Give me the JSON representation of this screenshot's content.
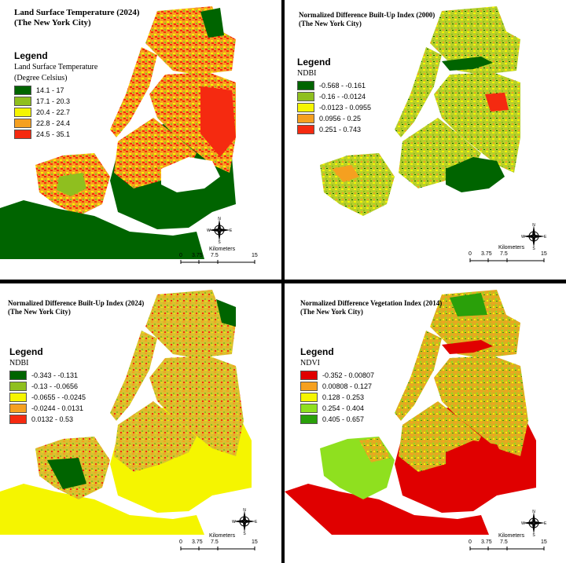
{
  "panels": [
    {
      "title1": "Land Surface Temperature (2024)",
      "title2": "(The New York City)",
      "legend_heading": "Legend",
      "legend_sub1": "Land Surface Temperature",
      "legend_sub2": "(Degree Celsius)",
      "classes": [
        {
          "label": "14.1 - 17",
          "color": "#006400"
        },
        {
          "label": "17.1 - 20.3",
          "color": "#8fbf1f"
        },
        {
          "label": "20.4 - 22.7",
          "color": "#f5f500"
        },
        {
          "label": "22.8 - 24.4",
          "color": "#f5a020"
        },
        {
          "label": "24.5 - 35.1",
          "color": "#f52a10"
        }
      ],
      "water_color": "#ffffff",
      "compass": {
        "n": "N",
        "s": "S",
        "e": "E",
        "w": "W"
      },
      "scale": {
        "title": "Kilometers",
        "ticks": [
          "0",
          "3.75",
          "7.5",
          "15"
        ]
      }
    },
    {
      "title1": "Normalized Difference Built-Up Index (2000)",
      "title2": "(The New York City)",
      "legend_heading": "Legend",
      "legend_sub1": "NDBI",
      "legend_sub2": "",
      "classes": [
        {
          "label": "-0.568 - -0.161",
          "color": "#006400"
        },
        {
          "label": "-0.16 - -0.0124",
          "color": "#8fbf1f"
        },
        {
          "label": "-0.0123 - 0.0955",
          "color": "#f5f500"
        },
        {
          "label": "0.0956 - 0.25",
          "color": "#f5a020"
        },
        {
          "label": "0.251 - 0.743",
          "color": "#f52a10"
        }
      ],
      "water_color": "#ffffff",
      "compass": {
        "n": "N",
        "s": "S",
        "e": "E",
        "w": "W"
      },
      "scale": {
        "title": "Kilometers",
        "ticks": [
          "0",
          "3.75",
          "7.5",
          "15"
        ]
      }
    },
    {
      "title1": "Normalized Difference Built-Up Index (2024)",
      "title2": "(The New York City)",
      "legend_heading": "Legend",
      "legend_sub1": "NDBI",
      "legend_sub2": "",
      "classes": [
        {
          "label": "-0.343 - -0.131",
          "color": "#006400"
        },
        {
          "label": "-0.13 - -0.0656",
          "color": "#8fbf1f"
        },
        {
          "label": "-0.0655 - -0.0245",
          "color": "#f5f500"
        },
        {
          "label": "-0.0244 - 0.0131",
          "color": "#f5a020"
        },
        {
          "label": "0.0132 - 0.53",
          "color": "#f52a10"
        }
      ],
      "water_color": "#f5f500",
      "compass": {
        "n": "N",
        "s": "S",
        "e": "E",
        "w": "W"
      },
      "scale": {
        "title": "Kilometers",
        "ticks": [
          "0",
          "3.75",
          "7.5",
          "15"
        ]
      }
    },
    {
      "title1": "Normalized Difference Vegetation Index (2014)",
      "title2": "(The New York City)",
      "legend_heading": "Legend",
      "legend_sub1": "NDVI",
      "legend_sub2": "",
      "classes": [
        {
          "label": "-0.352 - 0.00807",
          "color": "#e00000"
        },
        {
          "label": "0.00808 - 0.127",
          "color": "#f5a020"
        },
        {
          "label": "0.128 - 0.253",
          "color": "#f5f500"
        },
        {
          "label": "0.254 - 0.404",
          "color": "#8fe01f"
        },
        {
          "label": "0.405 - 0.657",
          "color": "#2aa00a"
        }
      ],
      "water_color": "#e00000",
      "compass": {
        "n": "N",
        "s": "S",
        "e": "E",
        "w": "W"
      },
      "scale": {
        "title": "Kilometers",
        "ticks": [
          "0",
          "3.75",
          "7.5",
          "15"
        ]
      }
    }
  ]
}
